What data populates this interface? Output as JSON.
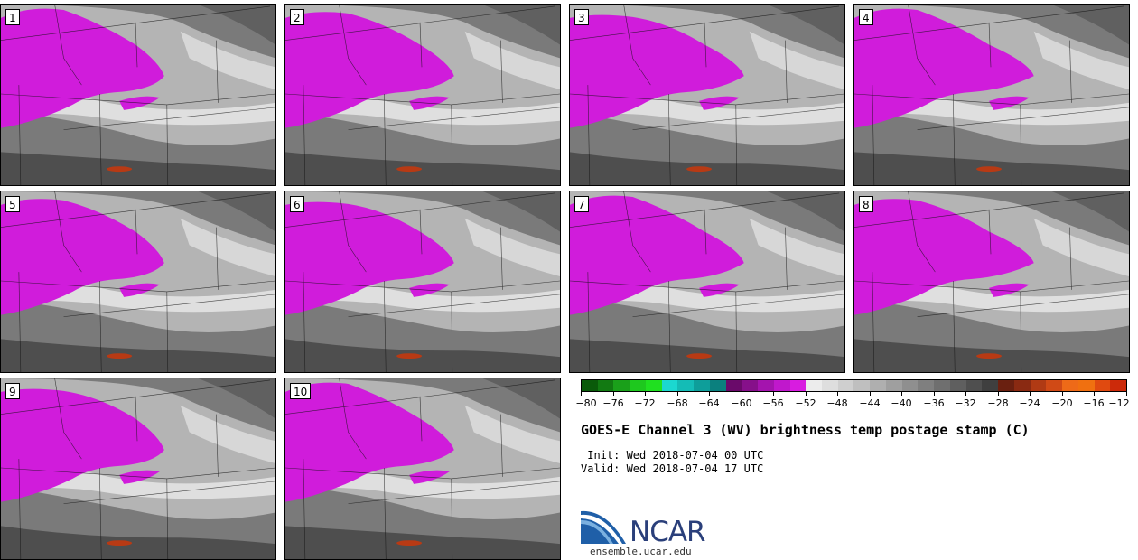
{
  "panels": [
    {
      "label": "1"
    },
    {
      "label": "2"
    },
    {
      "label": "3"
    },
    {
      "label": "4"
    },
    {
      "label": "5"
    },
    {
      "label": "6"
    },
    {
      "label": "7"
    },
    {
      "label": "8"
    },
    {
      "label": "9"
    },
    {
      "label": "10"
    }
  ],
  "colorbar": {
    "tick_labels": [
      "−80",
      "−76",
      "−72",
      "−68",
      "−64",
      "−60",
      "−56",
      "−52",
      "−48",
      "−44",
      "−40",
      "−36",
      "−32",
      "−28",
      "−24",
      "−20",
      "−16",
      "−12"
    ],
    "colors": [
      "#0a5a0a",
      "#127a12",
      "#1aa01a",
      "#1ec81e",
      "#20e020",
      "#1bd8d0",
      "#14bcb6",
      "#0e9e9a",
      "#0b807e",
      "#6a0a6a",
      "#86108a",
      "#a414ae",
      "#c018cc",
      "#d81ce0",
      "#ececec",
      "#dedede",
      "#cfcfcf",
      "#bfbfbf",
      "#afafaf",
      "#9f9f9f",
      "#8f8f8f",
      "#7f7f7f",
      "#6f6f6f",
      "#5f5f5f",
      "#4f4f4f",
      "#3f3f3f",
      "#6a2010",
      "#8a2a12",
      "#b03a14",
      "#d04a16",
      "#ee6a18",
      "#f07010",
      "#e04a10",
      "#cc2a0a"
    ]
  },
  "title": "GOES-E Channel 3 (WV) brightness temp postage stamp (C)",
  "init": " Init: Wed 2018-07-04 00 UTC",
  "valid": "Valid: Wed 2018-07-04 17 UTC",
  "logo_text": "NCAR",
  "url": "ensemble.ucar.edu",
  "map_colors": {
    "moist": "#d01cdb",
    "light": "#e6e6e6",
    "mid": "#b4b4b4",
    "dark": "#7a7a7a",
    "darker": "#4e4e4e",
    "warm": "#b83a14"
  }
}
